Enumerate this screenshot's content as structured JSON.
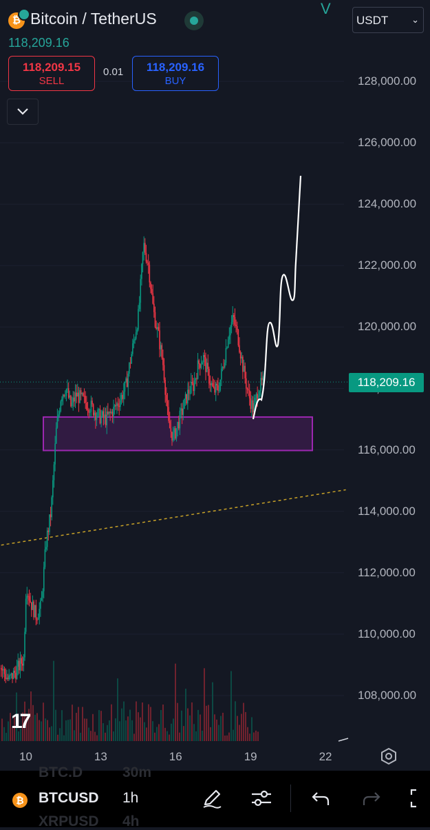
{
  "header": {
    "title": "Bitcoin / TetherUS",
    "last_price": "118,209.16",
    "currency": "USDT",
    "v_mark": "V"
  },
  "trade": {
    "sell_price": "118,209.15",
    "sell_label": "SELL",
    "spread": "0.01",
    "buy_price": "118,209.16",
    "buy_label": "BUY"
  },
  "chart": {
    "current_price_tag": "118,209.16",
    "y_axis_labels": [
      "128,000.00",
      "126,000.00",
      "124,000.00",
      "122,000.00",
      "120,000.00",
      "118,000.00",
      "116,000.00",
      "114,000.00",
      "112,000.00",
      "110,000.00",
      "108,000.00"
    ],
    "x_axis_labels": [
      "10",
      "13",
      "16",
      "19",
      "22"
    ],
    "colors": {
      "up": "#089981",
      "down": "#f23645",
      "zone": "#9c27b0",
      "trend": "#c9a227",
      "current": "#089981"
    },
    "zone_range": [
      115980,
      117070
    ],
    "logo_icon": "tradingview-logo"
  },
  "toolbar": {
    "symbol": "BTCUSD",
    "interval": "1h",
    "ghost_symbol_above": "BTC.D",
    "ghost_interval_above": "30m",
    "ghost_symbol_below": "XRPUSD",
    "ghost_interval_below": "4h",
    "icons": [
      "pencil-icon",
      "sliders-icon",
      "undo-icon",
      "redo-icon",
      "fullscreen-icon"
    ]
  },
  "chart_data": {
    "type": "candlestick",
    "symbol": "BTCUSDT",
    "interval": "1h",
    "ylim": [
      106800,
      129200
    ],
    "x_ticks": [
      "10",
      "13",
      "16",
      "19",
      "22"
    ],
    "candles_close_path": [
      [
        9.0,
        108900
      ],
      [
        9.3,
        108500
      ],
      [
        9.6,
        108800
      ],
      [
        9.9,
        109200
      ],
      [
        10.0,
        111600
      ],
      [
        10.2,
        111000
      ],
      [
        10.4,
        110600
      ],
      [
        10.6,
        110900
      ],
      [
        10.8,
        113000
      ],
      [
        11.0,
        114000
      ],
      [
        11.1,
        115300
      ],
      [
        11.2,
        116600
      ],
      [
        11.4,
        117800
      ],
      [
        11.6,
        118000
      ],
      [
        11.8,
        117400
      ],
      [
        12.0,
        117800
      ],
      [
        12.3,
        117600
      ],
      [
        12.6,
        117400
      ],
      [
        12.9,
        117100
      ],
      [
        13.2,
        117000
      ],
      [
        13.5,
        117300
      ],
      [
        13.8,
        117700
      ],
      [
        14.0,
        118100
      ],
      [
        14.3,
        119500
      ],
      [
        14.5,
        120400
      ],
      [
        14.7,
        122700
      ],
      [
        14.9,
        122000
      ],
      [
        15.1,
        120500
      ],
      [
        15.3,
        119700
      ],
      [
        15.5,
        118700
      ],
      [
        15.7,
        116800
      ],
      [
        15.9,
        116400
      ],
      [
        16.1,
        116900
      ],
      [
        16.3,
        117400
      ],
      [
        16.5,
        117900
      ],
      [
        16.7,
        118100
      ],
      [
        16.9,
        118800
      ],
      [
        17.1,
        119000
      ],
      [
        17.3,
        118400
      ],
      [
        17.5,
        117900
      ],
      [
        17.7,
        118000
      ],
      [
        17.9,
        118800
      ],
      [
        18.1,
        119800
      ],
      [
        18.3,
        120300
      ],
      [
        18.5,
        119600
      ],
      [
        18.7,
        118600
      ],
      [
        18.9,
        117800
      ],
      [
        19.1,
        117300
      ],
      [
        19.3,
        118000
      ],
      [
        19.5,
        118209
      ]
    ],
    "support_zone": [
      115980,
      117070
    ],
    "trendline": [
      [
        9.0,
        112900
      ],
      [
        22.8,
        114700
      ]
    ],
    "current_price": 118209.16
  }
}
